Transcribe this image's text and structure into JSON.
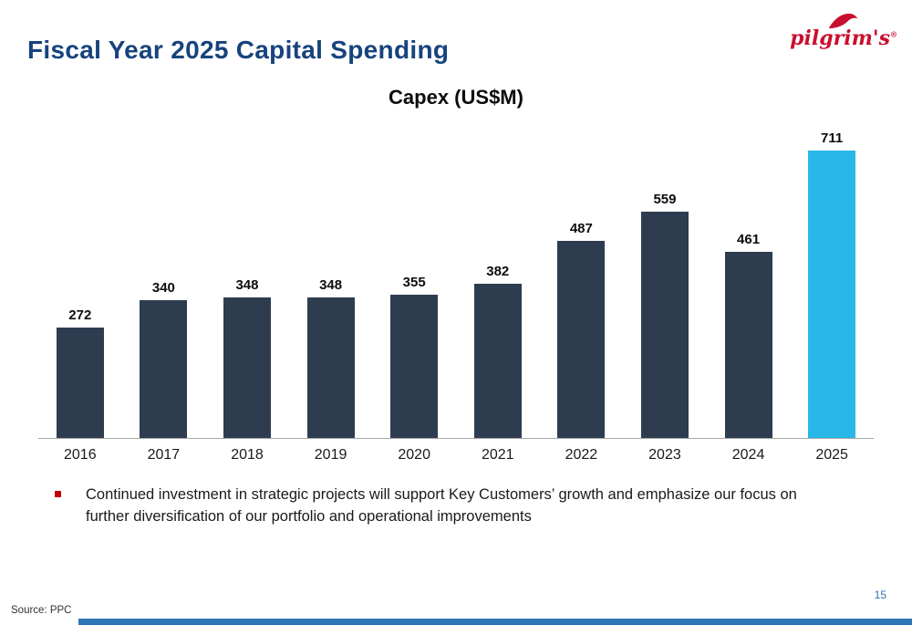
{
  "slide": {
    "title": "Fiscal Year 2025 Capital Spending",
    "logo_text": "pilgrim's",
    "logo_reg_mark": "®",
    "bullet_text": "Continued investment in strategic projects will support Key Customers’ growth and emphasize our focus on further diversification of our portfolio and operational improvements",
    "source": "Source: PPC",
    "page_number": "15"
  },
  "colors": {
    "title": "#17437d",
    "bar_default": "#2e3c50",
    "bar_highlight": "#29b7ea",
    "bullet_marker": "#c00000",
    "accent_blue": "#2e75b6",
    "logo_red": "#c8102e",
    "axis_line": "#a6a6a6"
  },
  "chart_data": {
    "type": "bar",
    "title": "Capex (US$M)",
    "categories": [
      "2016",
      "2017",
      "2018",
      "2019",
      "2020",
      "2021",
      "2022",
      "2023",
      "2024",
      "2025"
    ],
    "values": [
      272,
      340,
      348,
      348,
      355,
      382,
      487,
      559,
      461,
      711
    ],
    "highlight_category": "2025",
    "xlabel": "",
    "ylabel": "",
    "ylim": [
      0,
      750
    ],
    "grid": false,
    "value_labels": true,
    "legend": "none"
  }
}
